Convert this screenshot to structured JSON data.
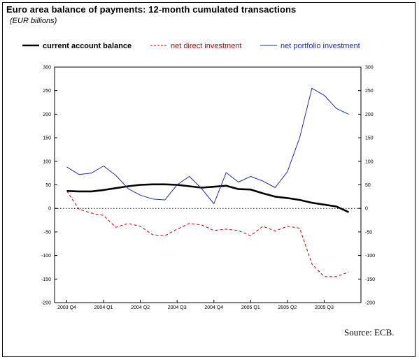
{
  "title": "Euro area balance of payments: 12-month cumulated transactions",
  "subtitle": "(EUR billions)",
  "source": "Source: ECB.",
  "chart_data": {
    "type": "line",
    "title": "Euro area balance of payments: 12-month cumulated transactions",
    "subtitle": "(EUR billions)",
    "xlabel": "",
    "ylabel": "",
    "ylim": [
      -200,
      300
    ],
    "yticks": [
      300,
      250,
      200,
      150,
      100,
      50,
      0,
      -50,
      -100,
      -150,
      -200
    ],
    "x_tick_labels": [
      "2003 Q4",
      "2004 Q1",
      "2004 Q2",
      "2004 Q3",
      "2004 Q4",
      "2005 Q1",
      "2005 Q2",
      "2005 Q3"
    ],
    "x_tick_months": [
      0,
      3,
      6,
      9,
      12,
      15,
      18,
      21
    ],
    "x_range_months": [
      -1,
      24
    ],
    "zero_line": "dotted",
    "legend": "top",
    "series": [
      {
        "name": "current account balance",
        "style": "solid-thick",
        "color": "#000000",
        "x": [
          0,
          1,
          2,
          3,
          4,
          5,
          6,
          7,
          8,
          9,
          10,
          11,
          12,
          13,
          14,
          15,
          16,
          17,
          18,
          19,
          20,
          21,
          22,
          23
        ],
        "values": [
          37,
          36,
          36,
          39,
          43,
          47,
          50,
          51,
          51,
          50,
          47,
          44,
          46,
          48,
          41,
          40,
          32,
          25,
          22,
          18,
          12,
          8,
          4,
          -8
        ]
      },
      {
        "name": "net direct investment",
        "style": "dashed",
        "color": "#c00000",
        "x": [
          0,
          1,
          2,
          3,
          4,
          5,
          6,
          7,
          8,
          9,
          10,
          11,
          12,
          13,
          14,
          15,
          16,
          17,
          18,
          19,
          20,
          21,
          22,
          23
        ],
        "values": [
          37,
          -2,
          -10,
          -15,
          -40,
          -32,
          -38,
          -56,
          -58,
          -44,
          -32,
          -35,
          -47,
          -44,
          -47,
          -58,
          -38,
          -48,
          -38,
          -42,
          -118,
          -145,
          -145,
          -135
        ]
      },
      {
        "name": "net portfolio investment",
        "style": "solid-thin",
        "color": "#1f2f9f",
        "x": [
          0,
          1,
          2,
          3,
          4,
          5,
          6,
          7,
          8,
          9,
          10,
          11,
          12,
          13,
          14,
          15,
          16,
          17,
          18,
          19,
          20,
          21,
          22,
          23
        ],
        "values": [
          88,
          72,
          75,
          90,
          70,
          42,
          28,
          20,
          18,
          50,
          68,
          42,
          10,
          76,
          56,
          68,
          58,
          44,
          78,
          150,
          255,
          240,
          212,
          200
        ]
      }
    ]
  }
}
